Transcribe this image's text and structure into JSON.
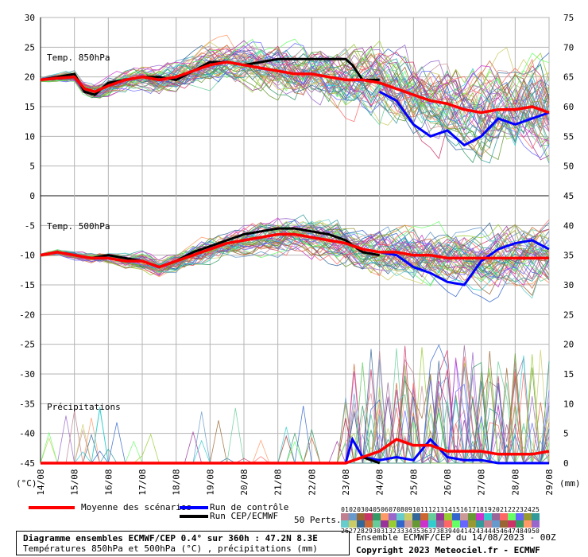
{
  "chart_data": {
    "type": "line",
    "x_dates": [
      "14/08",
      "15/08",
      "16/08",
      "17/08",
      "18/08",
      "19/08",
      "20/08",
      "21/08",
      "22/08",
      "23/08",
      "24/08",
      "25/08",
      "26/08",
      "27/08",
      "28/08",
      "29/08"
    ],
    "left_ticks": [
      "30",
      "25",
      "20",
      "15",
      "10",
      "5",
      "0",
      "-5",
      "-10",
      "-15",
      "-20",
      "-25",
      "-30",
      "-35",
      "-40",
      "-45"
    ],
    "right_ticks_t850": [
      "75",
      "70",
      "65",
      "60",
      "55",
      "50",
      "45"
    ],
    "right_ticks_t500": [
      "40",
      "35",
      "30",
      "25",
      "20",
      "15",
      "10",
      "5",
      "0"
    ],
    "left_unit": "(°C)",
    "right_unit": "(mm)",
    "panel_labels": {
      "t850": "Temp. 850hPa",
      "t500": "Temp. 500hPa",
      "precip": "Précipitations"
    },
    "ylim_left": [
      -45,
      30
    ],
    "ylim_right": [
      0,
      75
    ],
    "x_days": [
      0,
      15
    ],
    "series": {
      "t850_mean": {
        "x": [
          0,
          0.5,
          1,
          1.3,
          1.6,
          2,
          2.5,
          3,
          3.5,
          4,
          4.5,
          5,
          5.5,
          6,
          6.5,
          7,
          7.5,
          8,
          8.5,
          9,
          9.5,
          10,
          10.5,
          11,
          11.5,
          12,
          12.5,
          13,
          13.5,
          14,
          14.5,
          15
        ],
        "y": [
          19.5,
          19.8,
          20,
          18,
          17.5,
          18.5,
          19.5,
          20,
          19.5,
          20,
          21,
          22,
          22.5,
          22,
          21.5,
          21,
          20.5,
          20.5,
          20,
          19.5,
          19.5,
          19,
          18,
          17,
          16,
          15.5,
          14.5,
          14,
          14.5,
          14.5,
          15,
          14
        ]
      },
      "t850_control": {
        "x": [
          10,
          10.5,
          11,
          11.5,
          12,
          12.5,
          13,
          13.5,
          14,
          14.5,
          15
        ],
        "y": [
          17.5,
          16,
          12,
          10,
          11,
          8.5,
          10,
          13,
          12,
          13,
          14
        ]
      },
      "t850_run": {
        "x": [
          0,
          0.5,
          1,
          1.3,
          1.6,
          2,
          2.5,
          3,
          3.5,
          4,
          4.5,
          5,
          5.5,
          6,
          6.5,
          7,
          7.5,
          8,
          8.5,
          9,
          9.2,
          9.5,
          10
        ],
        "y": [
          19.5,
          20,
          20.5,
          17.5,
          17,
          19,
          19.5,
          20,
          20,
          19.5,
          21,
          22.5,
          22.5,
          22,
          22.5,
          23,
          23,
          23,
          23,
          23,
          22,
          19.5,
          19.5
        ]
      },
      "t500_mean": {
        "x": [
          0,
          0.5,
          1,
          1.5,
          2,
          2.5,
          3,
          3.5,
          4,
          4.5,
          5,
          5.5,
          6,
          6.5,
          7,
          7.5,
          8,
          8.5,
          9,
          9.5,
          10,
          10.5,
          11,
          11.5,
          12,
          12.5,
          13,
          13.5,
          14,
          14.5,
          15
        ],
        "y": [
          -10,
          -9.5,
          -10,
          -10.5,
          -10.5,
          -11,
          -11,
          -12,
          -11,
          -10,
          -9,
          -8,
          -7.5,
          -7,
          -6.5,
          -6.5,
          -7,
          -7.5,
          -8,
          -9,
          -9.5,
          -9.5,
          -10,
          -10,
          -10.5,
          -10.5,
          -10.5,
          -10.5,
          -10.5,
          -10.5,
          -10.5
        ]
      },
      "t500_control": {
        "x": [
          10,
          10.5,
          11,
          11.5,
          12,
          12.5,
          13,
          13.5,
          14,
          14.5,
          15
        ],
        "y": [
          -9.5,
          -10,
          -12,
          -13,
          -14.5,
          -15,
          -11,
          -9,
          -8,
          -7.5,
          -9
        ]
      },
      "t500_run": {
        "x": [
          0,
          0.5,
          1,
          1.5,
          2,
          2.5,
          3,
          3.5,
          4,
          4.5,
          5,
          5.5,
          6,
          6.5,
          7,
          7.5,
          8,
          8.5,
          9,
          9.5,
          10
        ],
        "y": [
          -10,
          -9.5,
          -10,
          -10.5,
          -10,
          -10.5,
          -11,
          -12,
          -11,
          -9.5,
          -8.5,
          -7.5,
          -6.5,
          -6,
          -5.5,
          -5.5,
          -6,
          -6.5,
          -7.5,
          -9.5,
          -10
        ]
      },
      "precip_mean": {
        "x": [
          0,
          1,
          2,
          3,
          4,
          5,
          6,
          7,
          8,
          9,
          9.5,
          10,
          10.5,
          11,
          11.5,
          12,
          12.5,
          13,
          13.5,
          14,
          14.5,
          15
        ],
        "y": [
          0,
          0,
          0,
          0,
          0,
          0,
          0,
          0,
          0,
          0,
          1,
          2,
          4,
          3,
          3,
          2,
          2,
          2,
          1.5,
          1.5,
          1.5,
          2
        ]
      },
      "precip_control": {
        "x": [
          0,
          1,
          2,
          3,
          4,
          5,
          6,
          7,
          8,
          9,
          9.2,
          9.5,
          10,
          10.5,
          11,
          11.5,
          12,
          12.5,
          13,
          13.5,
          14,
          15
        ],
        "y": [
          0,
          0,
          0,
          0,
          0,
          0,
          0,
          0,
          0,
          0,
          4,
          1,
          0.5,
          1,
          0.5,
          4,
          1,
          0.5,
          0.5,
          0,
          0,
          0
        ]
      },
      "precip_run": {
        "x": [
          0,
          1,
          2,
          3,
          4,
          5,
          6,
          7,
          8,
          9,
          9.5,
          10
        ],
        "y": [
          0,
          0,
          0,
          0,
          0,
          0,
          0,
          0,
          0,
          0,
          1,
          0
        ]
      }
    },
    "ensemble_members": 50
  },
  "legend": {
    "mean": "Moyenne des scénarios",
    "control": "Run de contrôle",
    "run": "Run CEP/ECMWF",
    "perts": "50 Perts.",
    "pert_row1": [
      "01",
      "02",
      "03",
      "04",
      "05",
      "06",
      "07",
      "08",
      "09",
      "10",
      "11",
      "12",
      "13",
      "14",
      "15",
      "16",
      "17",
      "18",
      "19",
      "20",
      "21",
      "22",
      "23",
      "24",
      "25"
    ],
    "pert_row2": [
      "26",
      "27",
      "28",
      "29",
      "30",
      "31",
      "32",
      "33",
      "34",
      "35",
      "36",
      "37",
      "38",
      "39",
      "40",
      "41",
      "42",
      "43",
      "44",
      "45",
      "46",
      "47",
      "48",
      "49",
      "50"
    ]
  },
  "colors": {
    "mean": "#ff0000",
    "control": "#0000ff",
    "run": "#000000",
    "grid": "#b4b4b4",
    "pert_palette": [
      "#c08090",
      "#6699cc",
      "#996633",
      "#cc3366",
      "#339966",
      "#ff9966",
      "#9966cc",
      "#66cccc",
      "#cccc66",
      "#336699",
      "#cc6633",
      "#66cc99",
      "#993399",
      "#99cc33",
      "#3366cc",
      "#cc9999",
      "#669933",
      "#cc33cc",
      "#33cccc",
      "#996699",
      "#ff6666",
      "#66ff66",
      "#6666ff",
      "#999933",
      "#339999"
    ]
  },
  "title": {
    "line1": "Diagramme ensembles ECMWF/CEP 0.4° sur 360h : 47.2N 8.3E",
    "line2": "Températures 850hPa et 500hPa (°C) , précipitations (mm)"
  },
  "credit": {
    "line1": "Ensemble ECMWF/CEP du 14/08/2023 - 00Z",
    "line2": "Copyright 2023 Meteociel.fr - ECMWF"
  }
}
